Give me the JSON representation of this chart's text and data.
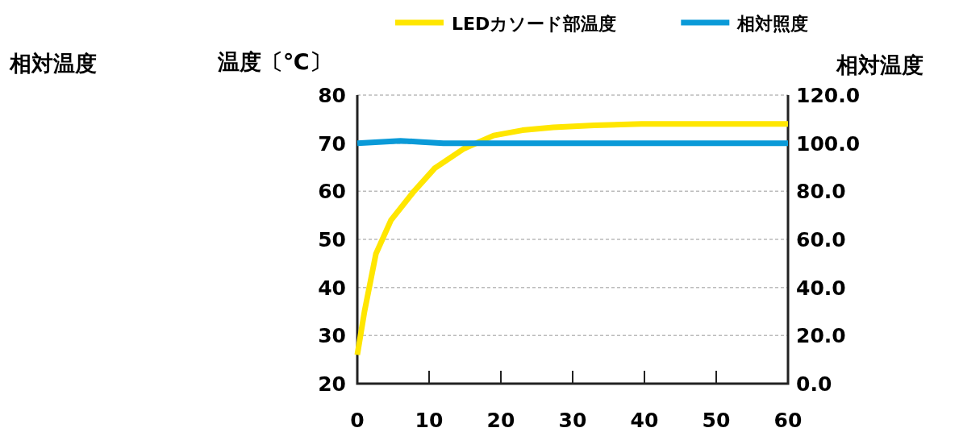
{
  "chart_data": {
    "type": "line",
    "ylabel": "温度〔℃〕",
    "y2label": "相対温度",
    "annotations": [
      "相対温度"
    ],
    "xlim": [
      0,
      60
    ],
    "xticks": [
      0,
      10,
      20,
      30,
      40,
      50,
      60
    ],
    "ylim": [
      20,
      80
    ],
    "yticks": [
      20,
      30,
      40,
      50,
      60,
      70,
      80
    ],
    "y2lim": [
      0,
      120
    ],
    "y2ticks": [
      {
        "value": 0,
        "label": "0.0"
      },
      {
        "value": 20,
        "label": "20.0"
      },
      {
        "value": 40,
        "label": "40.0"
      },
      {
        "value": 60,
        "label": "60.0"
      },
      {
        "value": 80,
        "label": "80.0"
      },
      {
        "value": 100,
        "label": "100.0"
      },
      {
        "value": 120,
        "label": "120.0"
      }
    ],
    "grid": "y",
    "legend": "top",
    "series": [
      {
        "name": "LEDカソード部温度",
        "color": "#ffe600",
        "x": [
          0,
          1,
          2.6,
          4.7,
          7.9,
          10.8,
          14.9,
          19,
          23,
          27.3,
          33,
          39.6,
          50,
          60
        ],
        "values": [
          26,
          35,
          47,
          54,
          60,
          64.8,
          68.9,
          71.6,
          72.7,
          73.3,
          73.7,
          74,
          74,
          74
        ]
      },
      {
        "name": "相対照度",
        "color": "#0a9ad8",
        "axis": "y2",
        "x": [
          0,
          3,
          6,
          9,
          12,
          15,
          20,
          30,
          40,
          50,
          60
        ],
        "values": [
          100,
          100.5,
          101,
          100.5,
          100,
          100,
          100,
          100,
          100,
          100,
          100
        ]
      }
    ]
  }
}
